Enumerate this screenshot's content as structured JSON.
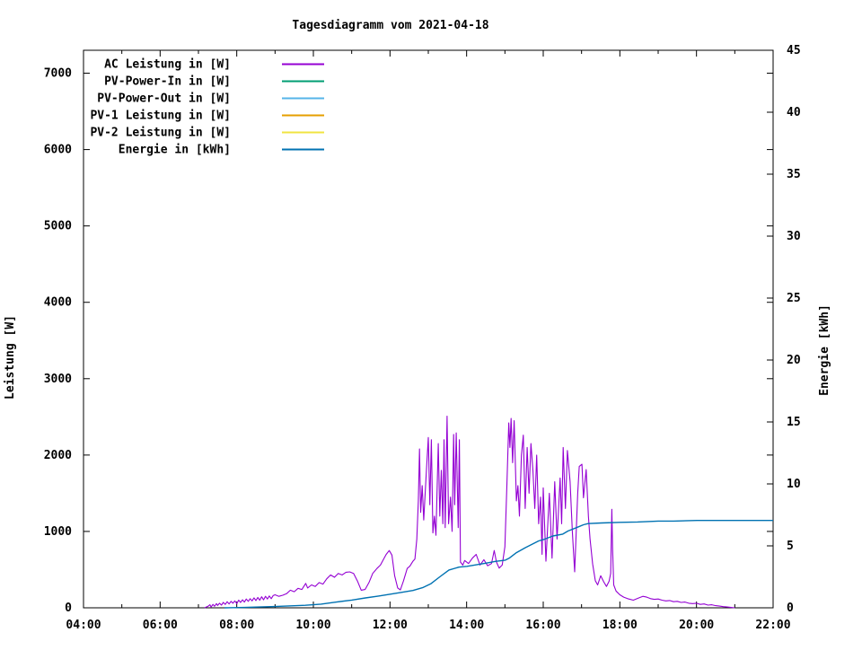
{
  "title": "Tagesdiagramm vom 2021-04-18",
  "chart_data": {
    "type": "line",
    "title": "Tagesdiagramm vom 2021-04-18",
    "x_axis": {
      "unit": "time",
      "range_hours": [
        4,
        22
      ],
      "major_tick_step_hours": 2,
      "minor_tick_step_hours": 1,
      "tick_labels": [
        "04:00",
        "06:00",
        "08:00",
        "10:00",
        "12:00",
        "14:00",
        "16:00",
        "18:00",
        "20:00",
        "22:00"
      ]
    },
    "y_left": {
      "label": "Leistung [W]",
      "range": [
        0,
        7300
      ],
      "ticks": [
        0,
        1000,
        2000,
        3000,
        4000,
        5000,
        6000,
        7000
      ]
    },
    "y_right": {
      "label": "Energie [kWh]",
      "range": [
        0,
        45
      ],
      "ticks": [
        0,
        5,
        10,
        15,
        20,
        25,
        30,
        35,
        40,
        45
      ]
    },
    "legend": {
      "position": "top-left-inside"
    },
    "series": [
      {
        "name": "AC Leistung in [W]",
        "color": "#9400d3",
        "axis": "left",
        "visible_in_plot": true,
        "points": [
          [
            7.16,
            0
          ],
          [
            7.25,
            20
          ],
          [
            7.3,
            40
          ],
          [
            7.33,
            10
          ],
          [
            7.38,
            45
          ],
          [
            7.42,
            20
          ],
          [
            7.47,
            55
          ],
          [
            7.5,
            30
          ],
          [
            7.55,
            60
          ],
          [
            7.6,
            35
          ],
          [
            7.65,
            70
          ],
          [
            7.7,
            45
          ],
          [
            7.75,
            80
          ],
          [
            7.8,
            50
          ],
          [
            7.85,
            85
          ],
          [
            7.9,
            60
          ],
          [
            7.95,
            90
          ],
          [
            8.0,
            55
          ],
          [
            8.05,
            100
          ],
          [
            8.1,
            70
          ],
          [
            8.15,
            105
          ],
          [
            8.2,
            75
          ],
          [
            8.25,
            115
          ],
          [
            8.3,
            85
          ],
          [
            8.35,
            120
          ],
          [
            8.4,
            90
          ],
          [
            8.45,
            130
          ],
          [
            8.5,
            95
          ],
          [
            8.55,
            135
          ],
          [
            8.6,
            100
          ],
          [
            8.65,
            145
          ],
          [
            8.7,
            105
          ],
          [
            8.75,
            150
          ],
          [
            8.8,
            115
          ],
          [
            8.85,
            155
          ],
          [
            8.9,
            120
          ],
          [
            8.95,
            160
          ],
          [
            9.0,
            170
          ],
          [
            9.1,
            150
          ],
          [
            9.2,
            165
          ],
          [
            9.3,
            185
          ],
          [
            9.4,
            230
          ],
          [
            9.5,
            210
          ],
          [
            9.6,
            255
          ],
          [
            9.7,
            240
          ],
          [
            9.8,
            320
          ],
          [
            9.85,
            260
          ],
          [
            9.95,
            300
          ],
          [
            10.05,
            280
          ],
          [
            10.15,
            330
          ],
          [
            10.25,
            310
          ],
          [
            10.35,
            380
          ],
          [
            10.45,
            430
          ],
          [
            10.55,
            400
          ],
          [
            10.65,
            450
          ],
          [
            10.75,
            430
          ],
          [
            10.85,
            465
          ],
          [
            10.95,
            470
          ],
          [
            11.05,
            450
          ],
          [
            11.15,
            350
          ],
          [
            11.25,
            230
          ],
          [
            11.35,
            240
          ],
          [
            11.45,
            330
          ],
          [
            11.55,
            450
          ],
          [
            11.66,
            515
          ],
          [
            11.75,
            560
          ],
          [
            11.83,
            635
          ],
          [
            11.9,
            700
          ],
          [
            11.98,
            750
          ],
          [
            12.05,
            690
          ],
          [
            12.12,
            420
          ],
          [
            12.2,
            260
          ],
          [
            12.27,
            235
          ],
          [
            12.35,
            350
          ],
          [
            12.45,
            515
          ],
          [
            12.52,
            545
          ],
          [
            12.6,
            610
          ],
          [
            12.65,
            640
          ],
          [
            12.7,
            900
          ],
          [
            12.74,
            1400
          ],
          [
            12.77,
            2080
          ],
          [
            12.8,
            1250
          ],
          [
            12.84,
            1600
          ],
          [
            12.88,
            1150
          ],
          [
            12.95,
            1800
          ],
          [
            13.0,
            2230
          ],
          [
            13.04,
            1350
          ],
          [
            13.08,
            2200
          ],
          [
            13.12,
            980
          ],
          [
            13.16,
            1200
          ],
          [
            13.2,
            950
          ],
          [
            13.26,
            2150
          ],
          [
            13.3,
            1200
          ],
          [
            13.34,
            1800
          ],
          [
            13.38,
            1100
          ],
          [
            13.41,
            2200
          ],
          [
            13.44,
            1050
          ],
          [
            13.49,
            2510
          ],
          [
            13.53,
            1100
          ],
          [
            13.58,
            1450
          ],
          [
            13.62,
            1000
          ],
          [
            13.66,
            2270
          ],
          [
            13.69,
            1350
          ],
          [
            13.73,
            2290
          ],
          [
            13.78,
            1050
          ],
          [
            13.81,
            2200
          ],
          [
            13.84,
            600
          ],
          [
            13.9,
            560
          ],
          [
            13.95,
            620
          ],
          [
            14.05,
            580
          ],
          [
            14.15,
            650
          ],
          [
            14.25,
            700
          ],
          [
            14.35,
            560
          ],
          [
            14.45,
            630
          ],
          [
            14.55,
            550
          ],
          [
            14.65,
            580
          ],
          [
            14.72,
            750
          ],
          [
            14.78,
            600
          ],
          [
            14.85,
            520
          ],
          [
            14.93,
            560
          ],
          [
            15.0,
            800
          ],
          [
            15.05,
            1600
          ],
          [
            15.1,
            2420
          ],
          [
            15.13,
            2100
          ],
          [
            15.16,
            2480
          ],
          [
            15.2,
            1900
          ],
          [
            15.24,
            2450
          ],
          [
            15.3,
            1400
          ],
          [
            15.34,
            1600
          ],
          [
            15.38,
            1200
          ],
          [
            15.43,
            2000
          ],
          [
            15.48,
            2260
          ],
          [
            15.53,
            1300
          ],
          [
            15.58,
            2100
          ],
          [
            15.63,
            1500
          ],
          [
            15.68,
            2150
          ],
          [
            15.73,
            1800
          ],
          [
            15.78,
            1300
          ],
          [
            15.83,
            2000
          ],
          [
            15.88,
            1100
          ],
          [
            15.93,
            1450
          ],
          [
            15.97,
            700
          ],
          [
            16.0,
            1570
          ],
          [
            16.07,
            610
          ],
          [
            16.16,
            1500
          ],
          [
            16.23,
            650
          ],
          [
            16.3,
            1650
          ],
          [
            16.36,
            900
          ],
          [
            16.44,
            1700
          ],
          [
            16.48,
            1100
          ],
          [
            16.52,
            2100
          ],
          [
            16.58,
            1300
          ],
          [
            16.63,
            2060
          ],
          [
            16.7,
            1650
          ],
          [
            16.76,
            1000
          ],
          [
            16.82,
            470
          ],
          [
            16.9,
            1500
          ],
          [
            16.94,
            1850
          ],
          [
            17.01,
            1880
          ],
          [
            17.05,
            1440
          ],
          [
            17.12,
            1810
          ],
          [
            17.18,
            1200
          ],
          [
            17.22,
            905
          ],
          [
            17.29,
            575
          ],
          [
            17.36,
            355
          ],
          [
            17.42,
            300
          ],
          [
            17.5,
            420
          ],
          [
            17.58,
            340
          ],
          [
            17.65,
            280
          ],
          [
            17.72,
            350
          ],
          [
            17.76,
            450
          ],
          [
            17.79,
            1290
          ],
          [
            17.81,
            790
          ],
          [
            17.84,
            300
          ],
          [
            17.9,
            220
          ],
          [
            18.0,
            170
          ],
          [
            18.1,
            140
          ],
          [
            18.2,
            120
          ],
          [
            18.35,
            100
          ],
          [
            18.5,
            130
          ],
          [
            18.6,
            150
          ],
          [
            18.7,
            140
          ],
          [
            18.8,
            120
          ],
          [
            18.9,
            110
          ],
          [
            19.0,
            115
          ],
          [
            19.1,
            100
          ],
          [
            19.2,
            90
          ],
          [
            19.3,
            95
          ],
          [
            19.4,
            80
          ],
          [
            19.5,
            85
          ],
          [
            19.6,
            70
          ],
          [
            19.7,
            75
          ],
          [
            19.8,
            60
          ],
          [
            19.9,
            55
          ],
          [
            20.0,
            60
          ],
          [
            20.1,
            45
          ],
          [
            20.2,
            50
          ],
          [
            20.3,
            35
          ],
          [
            20.4,
            40
          ],
          [
            20.5,
            28
          ],
          [
            20.6,
            22
          ],
          [
            20.7,
            15
          ],
          [
            20.8,
            10
          ],
          [
            20.9,
            5
          ],
          [
            21.0,
            0
          ]
        ]
      },
      {
        "name": "PV-Power-In in [W]",
        "color": "#009e73",
        "axis": "left",
        "visible_in_plot": false,
        "points": []
      },
      {
        "name": "PV-Power-Out in [W]",
        "color": "#56b4e9",
        "axis": "left",
        "visible_in_plot": false,
        "points": []
      },
      {
        "name": "PV-1 Leistung in [W]",
        "color": "#e69f00",
        "axis": "left",
        "visible_in_plot": false,
        "points": []
      },
      {
        "name": "PV-2 Leistung in [W]",
        "color": "#f0e442",
        "axis": "left",
        "visible_in_plot": false,
        "points": []
      },
      {
        "name": "Energie in [kWh]",
        "color": "#0072b2",
        "axis": "right",
        "visible_in_plot": true,
        "points": [
          [
            7.68,
            0
          ],
          [
            8.2,
            0.03
          ],
          [
            8.99,
            0.1
          ],
          [
            9.79,
            0.2
          ],
          [
            10.2,
            0.3
          ],
          [
            10.56,
            0.45
          ],
          [
            11.0,
            0.62
          ],
          [
            11.36,
            0.8
          ],
          [
            11.7,
            0.95
          ],
          [
            12.01,
            1.1
          ],
          [
            12.3,
            1.25
          ],
          [
            12.6,
            1.4
          ],
          [
            12.85,
            1.62
          ],
          [
            13.07,
            1.95
          ],
          [
            13.3,
            2.5
          ],
          [
            13.54,
            3.05
          ],
          [
            13.8,
            3.28
          ],
          [
            14.01,
            3.35
          ],
          [
            14.5,
            3.6
          ],
          [
            14.75,
            3.75
          ],
          [
            15.01,
            3.85
          ],
          [
            15.11,
            4.0
          ],
          [
            15.3,
            4.45
          ],
          [
            15.53,
            4.85
          ],
          [
            15.88,
            5.4
          ],
          [
            16.0,
            5.5
          ],
          [
            16.25,
            5.8
          ],
          [
            16.51,
            5.95
          ],
          [
            16.65,
            6.2
          ],
          [
            16.89,
            6.5
          ],
          [
            17.05,
            6.7
          ],
          [
            17.17,
            6.8
          ],
          [
            17.52,
            6.85
          ],
          [
            18.01,
            6.9
          ],
          [
            18.46,
            6.93
          ],
          [
            19.0,
            7.0
          ],
          [
            19.4,
            7.0
          ],
          [
            20.01,
            7.05
          ],
          [
            22.0,
            7.05
          ]
        ]
      }
    ]
  }
}
